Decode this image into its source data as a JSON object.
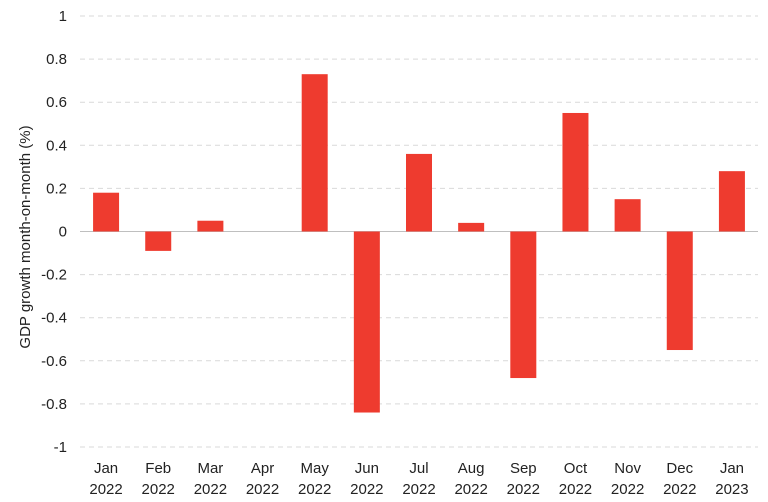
{
  "chart_data": {
    "type": "bar",
    "title": "",
    "xlabel": "",
    "ylabel": "GDP growth month-on-month (%)",
    "categories": [
      [
        "Jan",
        "2022"
      ],
      [
        "Feb",
        "2022"
      ],
      [
        "Mar",
        "2022"
      ],
      [
        "Apr",
        "2022"
      ],
      [
        "May",
        "2022"
      ],
      [
        "Jun",
        "2022"
      ],
      [
        "Jul",
        "2022"
      ],
      [
        "Aug",
        "2022"
      ],
      [
        "Sep",
        "2022"
      ],
      [
        "Oct",
        "2022"
      ],
      [
        "Nov",
        "2022"
      ],
      [
        "Dec",
        "2022"
      ],
      [
        "Jan",
        "2023"
      ]
    ],
    "values": [
      0.18,
      -0.09,
      0.05,
      0.0,
      0.73,
      -0.84,
      0.36,
      0.04,
      -0.68,
      0.55,
      0.15,
      -0.55,
      0.28
    ],
    "ylim": [
      -1,
      1
    ],
    "yticks": [
      1,
      0.8,
      0.6,
      0.4,
      0.2,
      0,
      -0.2,
      -0.4,
      -0.6,
      -0.8,
      -1
    ],
    "ytick_labels": [
      "1",
      "0.8",
      "0.6",
      "0.4",
      "0.2",
      "0",
      "-0.2",
      "-0.4",
      "-0.6",
      "-0.8",
      "-1"
    ],
    "grid": true,
    "bar_color": "#ee3b2f",
    "legend": "none"
  }
}
